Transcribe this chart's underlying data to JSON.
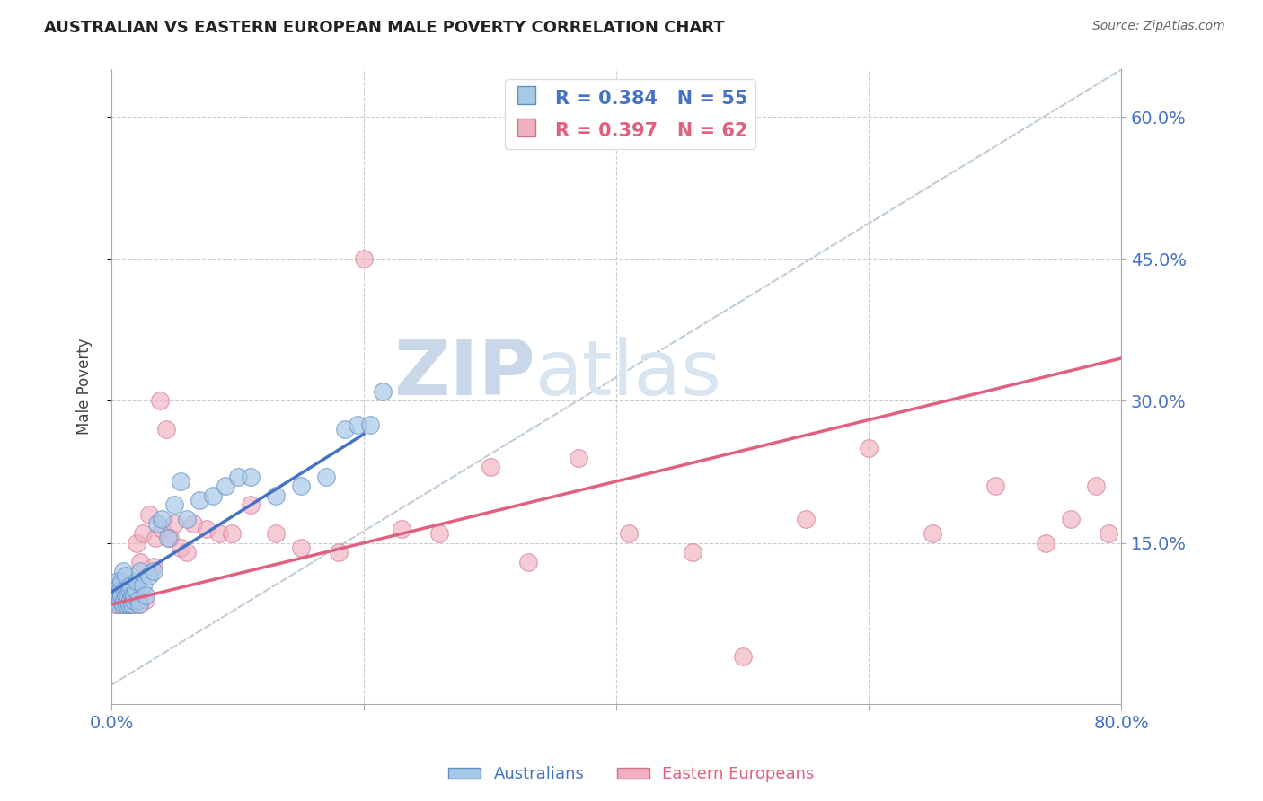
{
  "title": "AUSTRALIAN VS EASTERN EUROPEAN MALE POVERTY CORRELATION CHART",
  "source": "Source: ZipAtlas.com",
  "ylabel": "Male Poverty",
  "aus_color": "#A8C8E8",
  "aus_edge_color": "#6090C0",
  "aus_line_color": "#4472C4",
  "ee_color": "#F0B0C0",
  "ee_edge_color": "#D07090",
  "ee_line_color": "#E06080",
  "diagonal_color": "#C0CDD8",
  "background_color": "#ffffff",
  "grid_color": "#cccccc",
  "watermark_zip": "ZIP",
  "watermark_atlas": "atlas",
  "watermark_color": "#d8e4ef",
  "aus_R": 0.384,
  "aus_N": 55,
  "ee_R": 0.397,
  "ee_N": 62,
  "xlim": [
    0.0,
    0.8
  ],
  "ylim": [
    -0.02,
    0.65
  ],
  "aus_line_x0": 0.0,
  "aus_line_y0": 0.098,
  "aus_line_x1": 0.2,
  "aus_line_y1": 0.265,
  "ee_line_x0": 0.0,
  "ee_line_y0": 0.085,
  "ee_line_x1": 0.8,
  "ee_line_y1": 0.345,
  "aus_x": [
    0.003,
    0.004,
    0.005,
    0.005,
    0.006,
    0.006,
    0.007,
    0.007,
    0.008,
    0.008,
    0.009,
    0.009,
    0.01,
    0.01,
    0.011,
    0.011,
    0.012,
    0.012,
    0.013,
    0.013,
    0.014,
    0.014,
    0.015,
    0.015,
    0.016,
    0.016,
    0.017,
    0.018,
    0.019,
    0.02,
    0.021,
    0.022,
    0.023,
    0.025,
    0.027,
    0.03,
    0.033,
    0.036,
    0.04,
    0.045,
    0.05,
    0.055,
    0.06,
    0.07,
    0.08,
    0.09,
    0.1,
    0.11,
    0.13,
    0.15,
    0.17,
    0.185,
    0.195,
    0.205,
    0.215
  ],
  "aus_y": [
    0.09,
    0.1,
    0.11,
    0.085,
    0.095,
    0.105,
    0.09,
    0.1,
    0.095,
    0.11,
    0.085,
    0.12,
    0.09,
    0.1,
    0.095,
    0.115,
    0.1,
    0.085,
    0.09,
    0.095,
    0.1,
    0.085,
    0.09,
    0.105,
    0.095,
    0.085,
    0.09,
    0.095,
    0.1,
    0.11,
    0.09,
    0.085,
    0.12,
    0.105,
    0.095,
    0.115,
    0.12,
    0.17,
    0.175,
    0.155,
    0.19,
    0.215,
    0.175,
    0.195,
    0.2,
    0.21,
    0.22,
    0.22,
    0.2,
    0.21,
    0.22,
    0.27,
    0.275,
    0.275,
    0.31
  ],
  "ee_x": [
    0.003,
    0.004,
    0.005,
    0.006,
    0.006,
    0.007,
    0.008,
    0.009,
    0.01,
    0.01,
    0.011,
    0.012,
    0.012,
    0.013,
    0.013,
    0.014,
    0.015,
    0.016,
    0.017,
    0.018,
    0.019,
    0.02,
    0.021,
    0.022,
    0.023,
    0.025,
    0.027,
    0.03,
    0.033,
    0.035,
    0.038,
    0.04,
    0.043,
    0.046,
    0.05,
    0.055,
    0.06,
    0.065,
    0.075,
    0.085,
    0.095,
    0.11,
    0.13,
    0.15,
    0.18,
    0.2,
    0.23,
    0.26,
    0.3,
    0.33,
    0.37,
    0.41,
    0.46,
    0.5,
    0.55,
    0.6,
    0.65,
    0.7,
    0.74,
    0.76,
    0.78,
    0.79
  ],
  "ee_y": [
    0.085,
    0.09,
    0.095,
    0.085,
    0.1,
    0.09,
    0.085,
    0.095,
    0.09,
    0.1,
    0.085,
    0.09,
    0.095,
    0.085,
    0.1,
    0.09,
    0.085,
    0.09,
    0.095,
    0.085,
    0.1,
    0.15,
    0.09,
    0.085,
    0.13,
    0.16,
    0.09,
    0.18,
    0.125,
    0.155,
    0.3,
    0.165,
    0.27,
    0.155,
    0.17,
    0.145,
    0.14,
    0.17,
    0.165,
    0.16,
    0.16,
    0.19,
    0.16,
    0.145,
    0.14,
    0.45,
    0.165,
    0.16,
    0.23,
    0.13,
    0.24,
    0.16,
    0.14,
    0.03,
    0.175,
    0.25,
    0.16,
    0.21,
    0.15,
    0.175,
    0.21,
    0.16
  ]
}
